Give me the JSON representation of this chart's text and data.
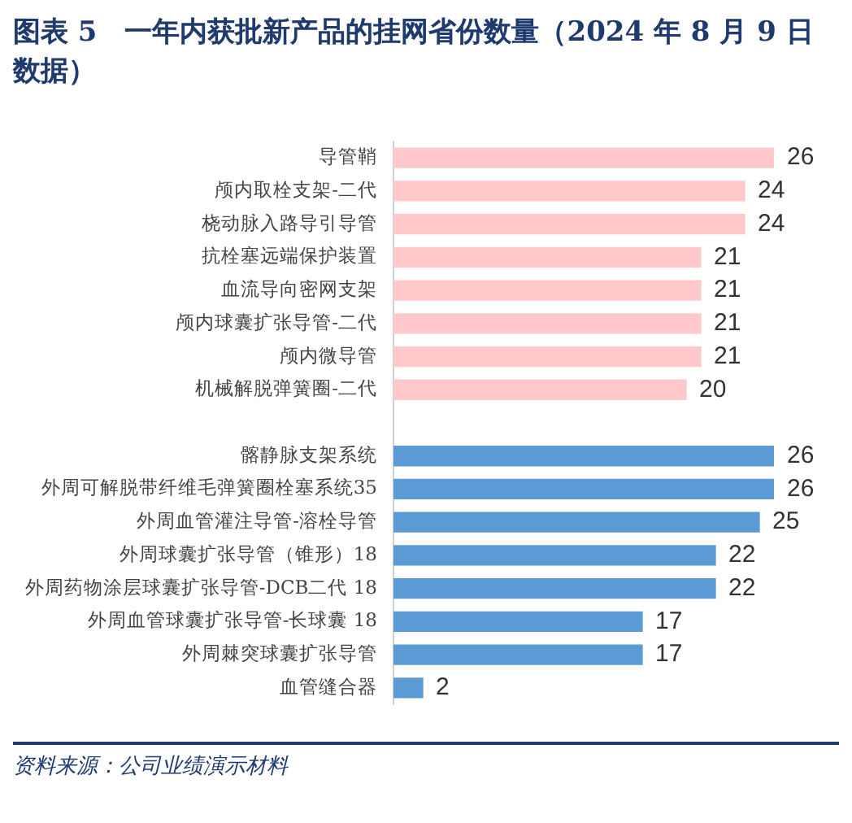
{
  "chart_data": {
    "type": "bar",
    "orientation": "horizontal",
    "title": "图表 5　一年内获批新产品的挂网省份数量（2024 年 8 月 9 日数据）",
    "categories": [
      "导管鞘",
      "颅内取栓支架-二代",
      "桡动脉入路导引导管",
      "抗栓塞远端保护装置",
      "血流导向密网支架",
      "颅内球囊扩张导管-二代",
      "颅内微导管",
      "机械解脱弹簧圈-二代",
      null,
      "髂静脉支架系统",
      "外周可解脱带纤维毛弹簧圈栓塞系统35",
      "外周血管灌注导管-溶栓导管",
      "外周球囊扩张导管（锥形）18",
      "外周药物涂层球囊扩张导管-DCB二代 18",
      "外周血管球囊扩张导管-长球囊 18",
      "外周棘突球囊扩张导管",
      "血管缝合器"
    ],
    "series": [
      {
        "color": "#ffc9cb",
        "values": [
          26,
          24,
          24,
          21,
          21,
          21,
          21,
          20,
          null,
          null,
          null,
          null,
          null,
          null,
          null,
          null,
          null
        ]
      },
      {
        "color": "#5b9bd5",
        "values": [
          null,
          null,
          null,
          null,
          null,
          null,
          null,
          null,
          null,
          26,
          26,
          25,
          22,
          22,
          17,
          17,
          2
        ]
      }
    ],
    "data_labels": true,
    "legend": false,
    "tick_labels": "y",
    "annotations": [
      "资料来源：公司业绩演示材料"
    ]
  }
}
